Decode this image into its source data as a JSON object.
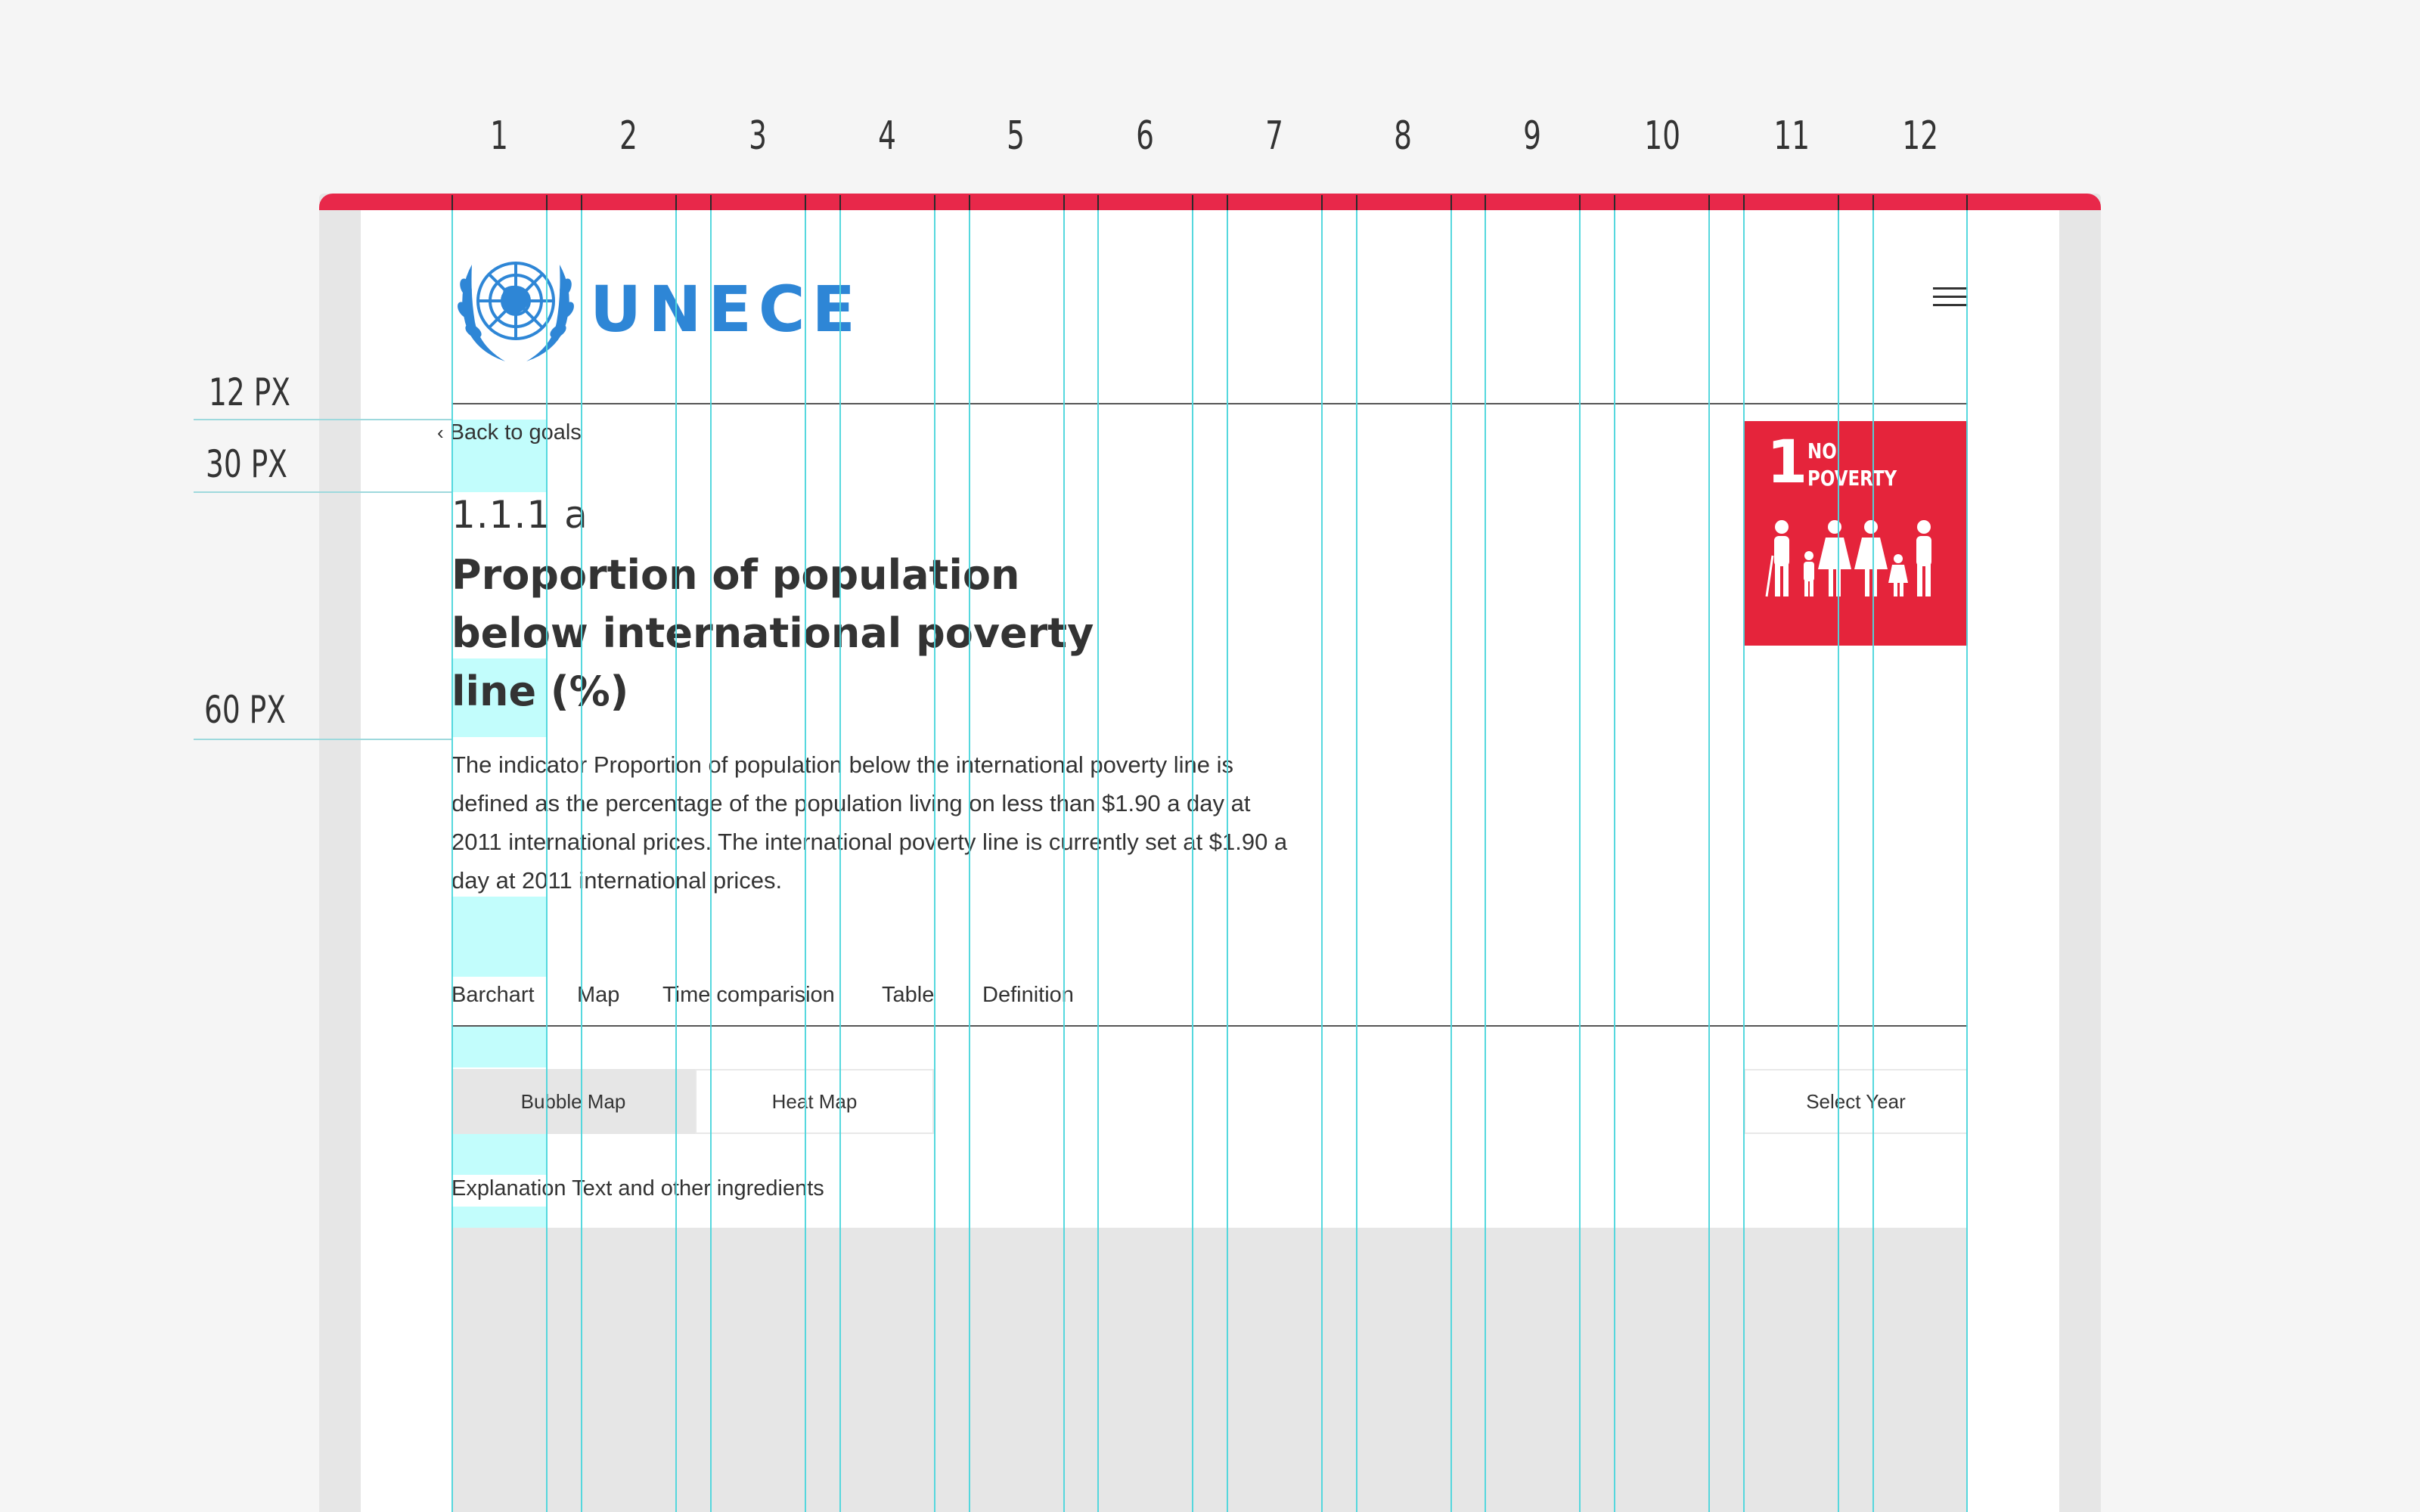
{
  "column_numbers": [
    "1",
    "2",
    "3",
    "4",
    "5",
    "6",
    "7",
    "8",
    "9",
    "10",
    "11",
    "12"
  ],
  "spacing_labels": {
    "first": "12 PX",
    "second": "30 PX",
    "third": "60 PX"
  },
  "header": {
    "logo_text": "UNECE",
    "logo_icon": "un-emblem-icon",
    "menu_icon": "hamburger-menu-icon"
  },
  "back_link": {
    "chevron": "‹",
    "label": "Back to goals"
  },
  "indicator": {
    "code": "1.1.1 a",
    "title": "Proportion of population below international poverty line (%)",
    "description": "The indicator Proportion of population below the international poverty line is defined as the percentage of the population living on less than $1.90 a day at 2011 international prices. The international poverty line is currently set at $1.90 a day at 2011 international prices."
  },
  "sdg_tile": {
    "number": "1",
    "label_line1": "NO",
    "label_line2": "POVERTY",
    "color": "#e5243b",
    "icon": "family-icon"
  },
  "tabs": [
    "Barchart",
    "Map",
    "Time comparision",
    "Table",
    "Definition"
  ],
  "map_buttons": {
    "bubble": "Bubble Map",
    "heat": "Heat Map",
    "active": "Bubble Map"
  },
  "select_year": "Select Year",
  "explanation": "Explanation Text and other ingredients",
  "colors": {
    "accent_red": "#e8284a",
    "logo_blue": "#2e86d6",
    "grid_cyan": "#4dd6dc",
    "highlight_cyan": "#c2fdfc"
  }
}
